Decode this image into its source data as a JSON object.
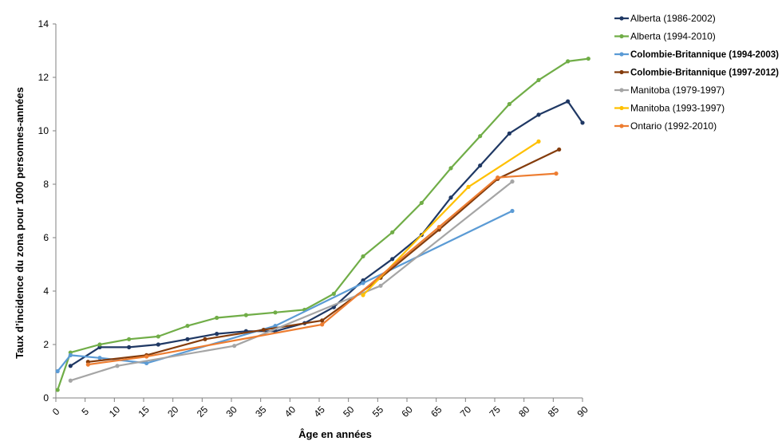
{
  "chart_data": {
    "type": "line",
    "xlabel": "Âge en années",
    "ylabel": "Taux d’incidence du zona pour 1000 personnes-années",
    "xlim": [
      0,
      90
    ],
    "ylim": [
      0,
      14
    ],
    "xticks": [
      0,
      5,
      10,
      15,
      20,
      25,
      30,
      35,
      40,
      45,
      50,
      55,
      60,
      65,
      70,
      75,
      80,
      85,
      90
    ],
    "yticks": [
      0,
      2,
      4,
      6,
      8,
      10,
      12,
      14
    ],
    "grid": false,
    "legend_position": "right",
    "series": [
      {
        "name": "Alberta (1986-2002)",
        "color": "#1f3864",
        "bold": false,
        "x": [
          2.5,
          7.5,
          12.5,
          17.5,
          22.5,
          27.5,
          32.5,
          37.5,
          42.5,
          47.5,
          52.5,
          57.5,
          62.5,
          67.5,
          72.5,
          77.5,
          82.5,
          87.5,
          90
        ],
        "y": [
          1.2,
          1.9,
          1.9,
          2.0,
          2.2,
          2.4,
          2.5,
          2.5,
          2.8,
          3.4,
          4.4,
          5.2,
          6.1,
          7.5,
          8.7,
          9.9,
          10.6,
          11.1,
          10.3
        ]
      },
      {
        "name": "Alberta (1994-2010)",
        "color": "#70ad47",
        "bold": false,
        "x": [
          0.3,
          2.5,
          7.5,
          12.5,
          17.5,
          22.5,
          27.5,
          32.5,
          37.5,
          42.5,
          47.5,
          52.5,
          57.5,
          62.5,
          67.5,
          72.5,
          77.5,
          82.5,
          87.5,
          91
        ],
        "y": [
          0.3,
          1.7,
          2.0,
          2.2,
          2.3,
          2.7,
          3.0,
          3.1,
          3.2,
          3.3,
          3.9,
          5.3,
          6.2,
          7.3,
          8.6,
          9.8,
          11.0,
          11.9,
          12.6,
          12.7
        ]
      },
      {
        "name": "Colombie-Britannique (1994-2003)",
        "color": "#5b9bd5",
        "bold": true,
        "x": [
          0.3,
          2.5,
          7.5,
          15.5,
          37.5,
          52.5,
          78
        ],
        "y": [
          1.0,
          1.6,
          1.5,
          1.3,
          2.7,
          4.3,
          7.0
        ]
      },
      {
        "name": "Colombie-Britannique (1997-2012)",
        "color": "#843c0c",
        "bold": true,
        "x": [
          5.5,
          15.5,
          25.5,
          35.5,
          45.5,
          55.5,
          65.5,
          75.5,
          86
        ],
        "y": [
          1.35,
          1.6,
          2.2,
          2.55,
          2.9,
          4.5,
          6.3,
          8.2,
          9.3
        ]
      },
      {
        "name": "Manitoba (1979-1997)",
        "color": "#a5a5a5",
        "bold": false,
        "x": [
          2.5,
          10.5,
          30.5,
          55.5,
          78
        ],
        "y": [
          0.65,
          1.2,
          1.95,
          4.2,
          8.1
        ]
      },
      {
        "name": "Manitoba (1993-1997)",
        "color": "#ffc000",
        "bold": false,
        "x": [
          52.5,
          70.5,
          82.5
        ],
        "y": [
          3.85,
          7.9,
          9.6
        ]
      },
      {
        "name": "Ontario (1992-2010)",
        "color": "#ed7d31",
        "bold": false,
        "x": [
          5.5,
          15.5,
          45.5,
          65.5,
          75.5,
          85.5
        ],
        "y": [
          1.25,
          1.55,
          2.75,
          6.4,
          8.25,
          8.4
        ]
      }
    ]
  }
}
